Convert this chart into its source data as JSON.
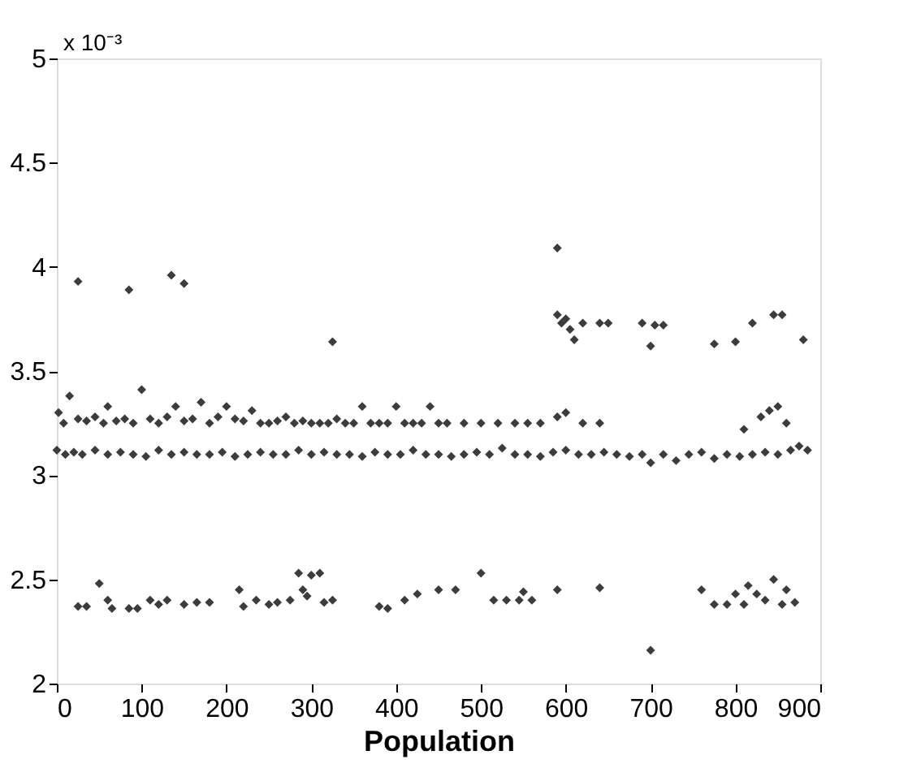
{
  "chart_data": {
    "type": "scatter",
    "xlabel": "Population",
    "annotations": [
      "x 10⁻³"
    ],
    "marker": "diamond",
    "grid": false,
    "legend": false,
    "xlim": [
      0,
      900
    ],
    "xticks": [
      0,
      100,
      200,
      300,
      400,
      500,
      600,
      700,
      800,
      900
    ],
    "ylim": [
      2,
      5
    ],
    "yticks": [
      2,
      2.5,
      3,
      3.5,
      4,
      4.5,
      5
    ],
    "series": [
      {
        "color": "#3c3c3c",
        "x": [
          25,
          85,
          135,
          150,
          325,
          590,
          590,
          595,
          600,
          605,
          610,
          620,
          640,
          650,
          690,
          700,
          705,
          715,
          775,
          800,
          820,
          845,
          855,
          880,
          2,
          8,
          15,
          25,
          35,
          45,
          55,
          60,
          70,
          80,
          90,
          100,
          110,
          120,
          130,
          140,
          150,
          160,
          170,
          180,
          190,
          200,
          210,
          220,
          230,
          240,
          250,
          260,
          270,
          280,
          290,
          300,
          310,
          320,
          330,
          340,
          350,
          360,
          370,
          380,
          390,
          400,
          410,
          420,
          430,
          440,
          450,
          460,
          480,
          500,
          520,
          540,
          555,
          570,
          590,
          600,
          620,
          640,
          810,
          830,
          840,
          850,
          860,
          0,
          10,
          20,
          30,
          45,
          60,
          75,
          90,
          105,
          120,
          135,
          150,
          165,
          180,
          195,
          210,
          225,
          240,
          255,
          270,
          285,
          300,
          315,
          330,
          345,
          360,
          375,
          390,
          405,
          420,
          435,
          450,
          465,
          480,
          495,
          510,
          525,
          540,
          555,
          570,
          585,
          600,
          615,
          630,
          645,
          660,
          675,
          690,
          700,
          715,
          730,
          745,
          760,
          775,
          790,
          805,
          820,
          835,
          850,
          865,
          875,
          885,
          25,
          35,
          50,
          60,
          65,
          85,
          95,
          110,
          120,
          130,
          150,
          165,
          180,
          215,
          220,
          235,
          250,
          260,
          275,
          285,
          290,
          295,
          300,
          310,
          315,
          325,
          380,
          390,
          410,
          425,
          450,
          470,
          500,
          515,
          530,
          545,
          550,
          560,
          590,
          640,
          700,
          760,
          775,
          790,
          800,
          810,
          815,
          825,
          835,
          845,
          855,
          860,
          870
        ],
        "values": [
          3.93,
          3.89,
          3.96,
          3.92,
          3.64,
          4.09,
          3.77,
          3.73,
          3.75,
          3.7,
          3.65,
          3.73,
          3.73,
          3.73,
          3.73,
          3.62,
          3.72,
          3.72,
          3.63,
          3.64,
          3.73,
          3.77,
          3.77,
          3.65,
          3.3,
          3.25,
          3.38,
          3.27,
          3.26,
          3.28,
          3.25,
          3.33,
          3.26,
          3.27,
          3.25,
          3.41,
          3.27,
          3.25,
          3.28,
          3.33,
          3.26,
          3.27,
          3.35,
          3.25,
          3.28,
          3.33,
          3.27,
          3.26,
          3.31,
          3.25,
          3.25,
          3.26,
          3.28,
          3.25,
          3.26,
          3.25,
          3.25,
          3.25,
          3.27,
          3.25,
          3.25,
          3.33,
          3.25,
          3.25,
          3.25,
          3.33,
          3.25,
          3.25,
          3.25,
          3.33,
          3.25,
          3.25,
          3.25,
          3.25,
          3.25,
          3.25,
          3.25,
          3.25,
          3.28,
          3.3,
          3.25,
          3.25,
          3.22,
          3.28,
          3.31,
          3.33,
          3.25,
          3.12,
          3.1,
          3.11,
          3.1,
          3.12,
          3.1,
          3.11,
          3.1,
          3.09,
          3.12,
          3.1,
          3.11,
          3.1,
          3.1,
          3.11,
          3.09,
          3.1,
          3.11,
          3.1,
          3.1,
          3.12,
          3.1,
          3.11,
          3.1,
          3.1,
          3.09,
          3.11,
          3.1,
          3.1,
          3.12,
          3.1,
          3.1,
          3.09,
          3.1,
          3.11,
          3.1,
          3.13,
          3.1,
          3.1,
          3.09,
          3.11,
          3.12,
          3.1,
          3.1,
          3.11,
          3.1,
          3.09,
          3.1,
          3.06,
          3.1,
          3.07,
          3.1,
          3.11,
          3.08,
          3.1,
          3.09,
          3.1,
          3.11,
          3.1,
          3.12,
          3.14,
          3.12,
          2.37,
          2.37,
          2.48,
          2.4,
          2.36,
          2.36,
          2.36,
          2.4,
          2.38,
          2.4,
          2.38,
          2.39,
          2.39,
          2.45,
          2.37,
          2.4,
          2.38,
          2.39,
          2.4,
          2.53,
          2.45,
          2.42,
          2.52,
          2.53,
          2.39,
          2.4,
          2.37,
          2.36,
          2.4,
          2.43,
          2.45,
          2.45,
          2.53,
          2.4,
          2.4,
          2.4,
          2.44,
          2.4,
          2.45,
          2.46,
          2.16,
          2.45,
          2.38,
          2.38,
          2.43,
          2.38,
          2.47,
          2.43,
          2.4,
          2.5,
          2.38,
          2.45,
          2.39
        ]
      }
    ]
  }
}
